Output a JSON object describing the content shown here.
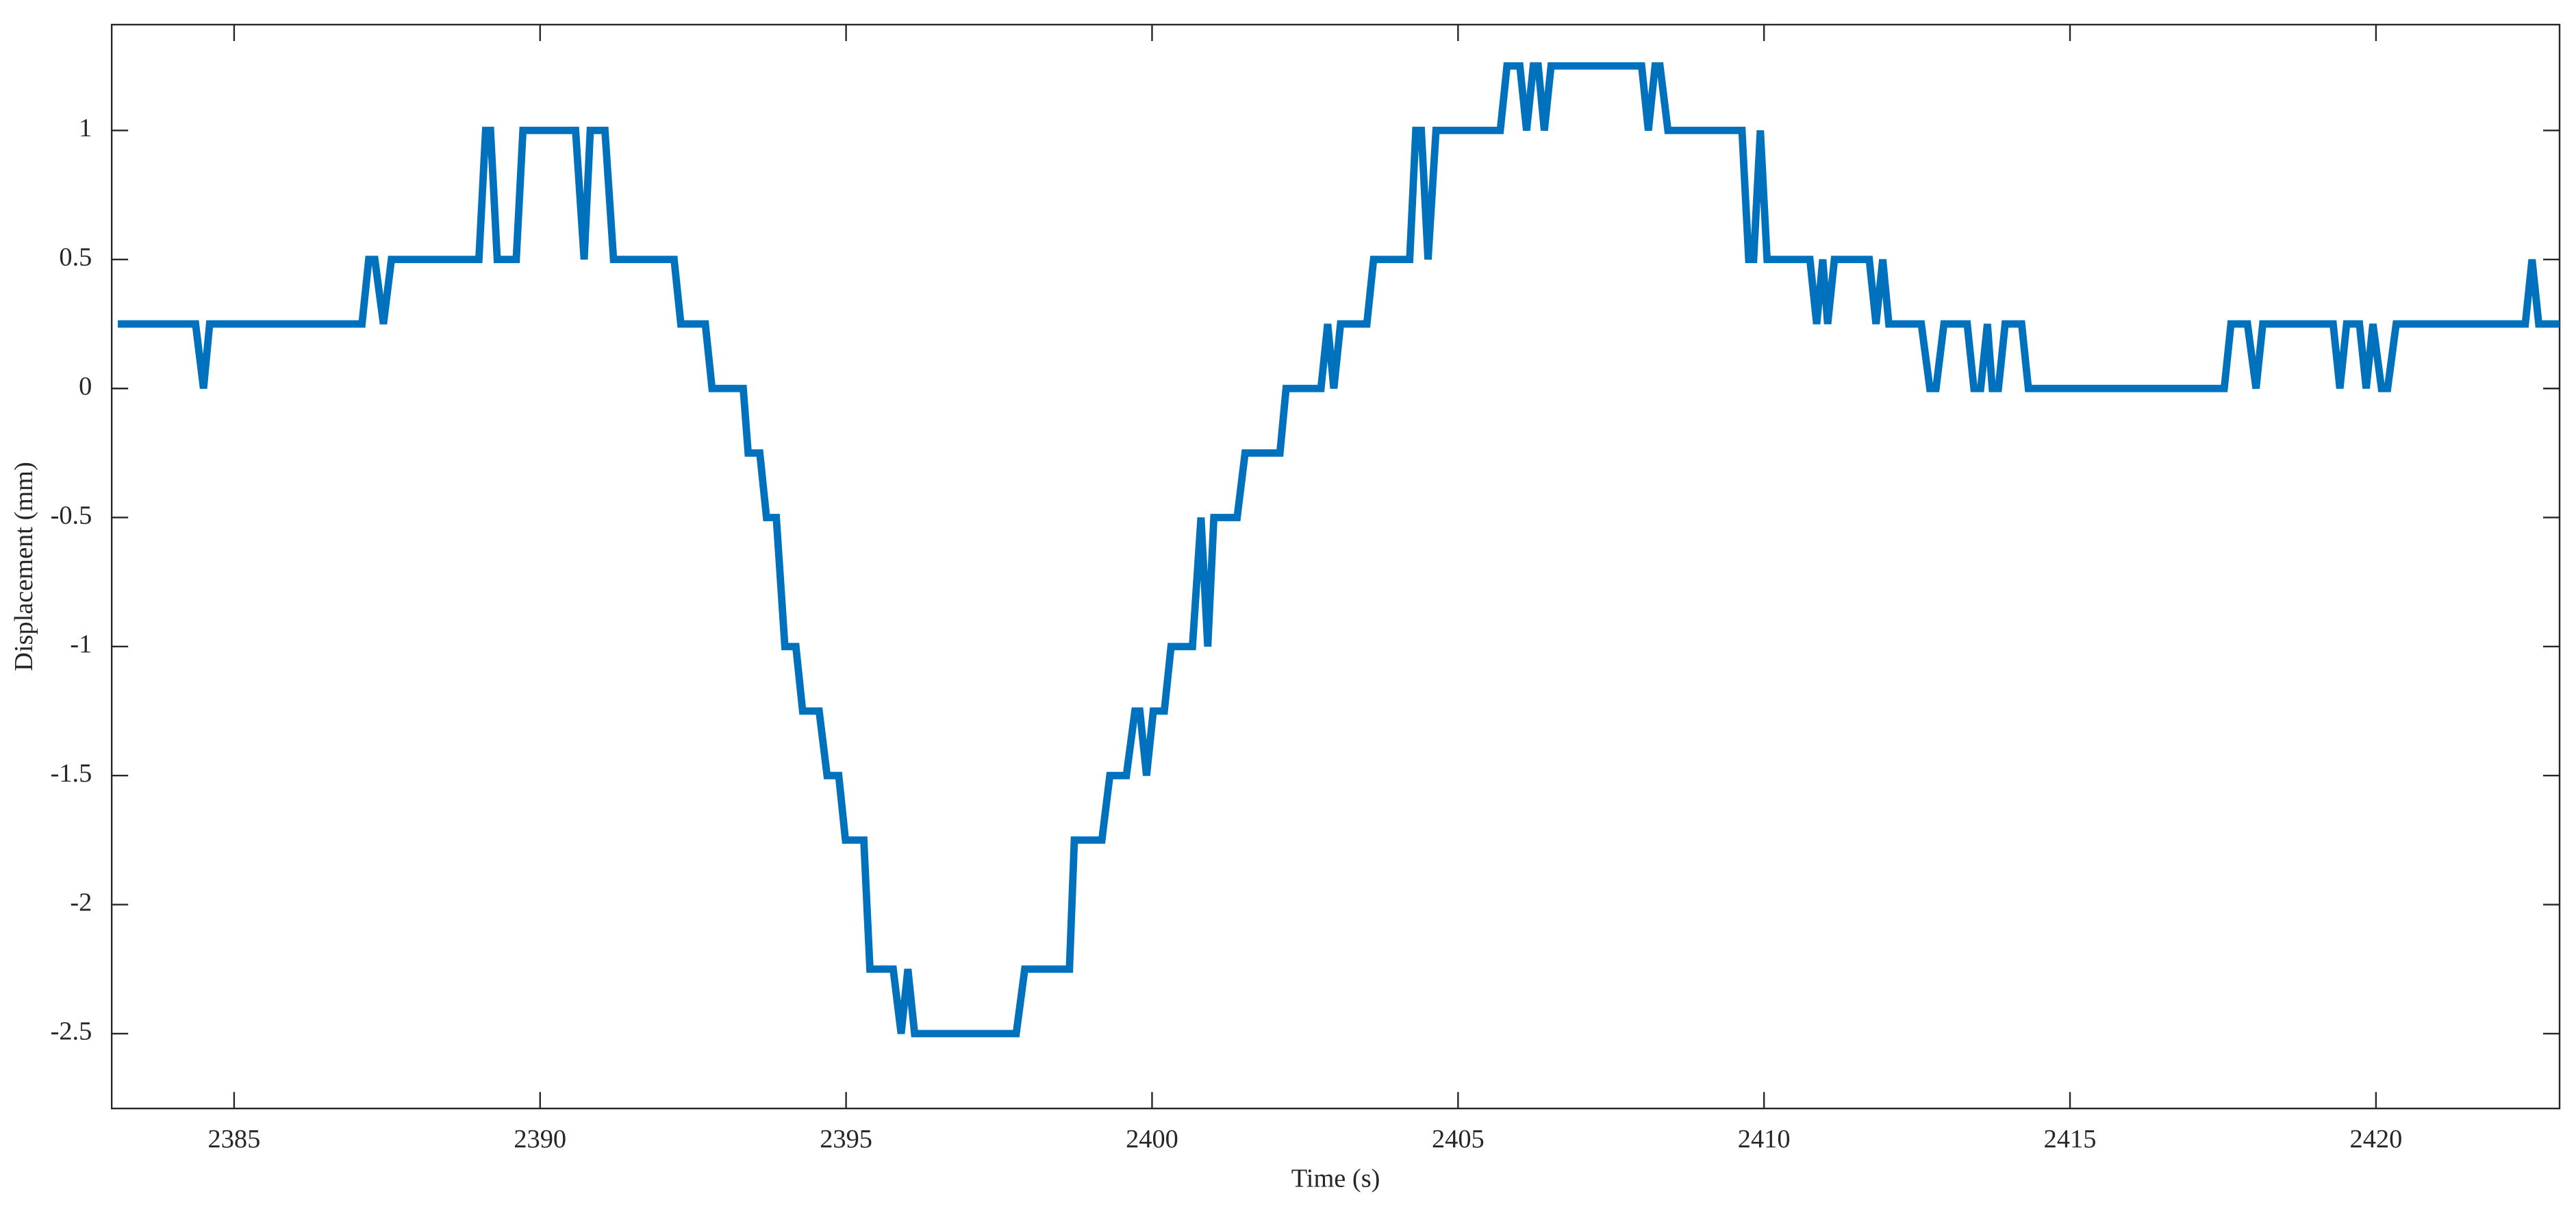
{
  "chart_data": {
    "type": "line",
    "x_label": "Time (s)",
    "y_label": "Displacement (mm)",
    "xlim": [
      2383,
      2423
    ],
    "ylim": [
      -2.79,
      1.41
    ],
    "xticks": [
      2385,
      2390,
      2395,
      2400,
      2405,
      2410,
      2415,
      2420
    ],
    "yticks": [
      -2.5,
      -2,
      -1.5,
      -1,
      -0.5,
      0,
      0.5,
      1
    ],
    "grid": false,
    "series": [
      {
        "name": "Displacement",
        "color": "#0072bd",
        "x": [
          2383.1,
          2384.37,
          2384.5,
          2384.6,
          2387.09,
          2387.2,
          2387.3,
          2387.44,
          2387.57,
          2389.0,
          2389.11,
          2389.19,
          2389.3,
          2389.61,
          2389.72,
          2390.58,
          2390.72,
          2390.82,
          2391.06,
          2391.2,
          2392.19,
          2392.3,
          2392.7,
          2392.81,
          2393.32,
          2393.4,
          2393.59,
          2393.7,
          2393.86,
          2394.0,
          2394.18,
          2394.29,
          2394.56,
          2394.69,
          2394.88,
          2394.99,
          2395.29,
          2395.39,
          2395.77,
          2395.9,
          2396.01,
          2396.12,
          2397.78,
          2397.92,
          2398.65,
          2398.73,
          2399.18,
          2399.31,
          2399.58,
          2399.72,
          2399.8,
          2399.91,
          2400.02,
          2400.2,
          2400.31,
          2400.66,
          2400.8,
          2400.91,
          2401.01,
          2401.39,
          2401.52,
          2402.09,
          2402.19,
          2402.76,
          2402.87,
          2402.97,
          2403.08,
          2403.51,
          2403.62,
          2404.21,
          2404.31,
          2404.4,
          2404.51,
          2404.64,
          2405.69,
          2405.8,
          2406.01,
          2406.12,
          2406.23,
          2406.31,
          2406.41,
          2406.52,
          2408.0,
          2408.11,
          2408.22,
          2408.3,
          2408.43,
          2409.64,
          2409.75,
          2409.83,
          2409.94,
          2410.05,
          2410.75,
          2410.86,
          2410.96,
          2411.04,
          2411.15,
          2411.72,
          2411.83,
          2411.94,
          2412.04,
          2412.57,
          2412.71,
          2412.81,
          2412.94,
          2413.32,
          2413.43,
          2413.54,
          2413.65,
          2413.73,
          2413.83,
          2413.94,
          2414.21,
          2414.32,
          2417.52,
          2417.63,
          2417.9,
          2418.04,
          2418.15,
          2419.3,
          2419.41,
          2419.52,
          2419.73,
          2419.84,
          2419.95,
          2420.09,
          2420.19,
          2420.33,
          2422.44,
          2422.55,
          2422.66,
          2423.0
        ],
        "values": [
          0.25,
          0.25,
          0,
          0.25,
          0.25,
          0.5,
          0.5,
          0.25,
          0.5,
          0.5,
          1,
          1,
          0.5,
          0.5,
          1,
          1,
          0.5,
          1,
          1,
          0.5,
          0.5,
          0.25,
          0.25,
          0,
          0,
          -0.25,
          -0.25,
          -0.5,
          -0.5,
          -1,
          -1,
          -1.25,
          -1.25,
          -1.5,
          -1.5,
          -1.75,
          -1.75,
          -2.25,
          -2.25,
          -2.5,
          -2.25,
          -2.5,
          -2.5,
          -2.25,
          -2.25,
          -1.75,
          -1.75,
          -1.5,
          -1.5,
          -1.25,
          -1.25,
          -1.5,
          -1.25,
          -1.25,
          -1,
          -1,
          -0.5,
          -1,
          -0.5,
          -0.5,
          -0.25,
          -0.25,
          0,
          0,
          0.25,
          0,
          0.25,
          0.25,
          0.5,
          0.5,
          1,
          1,
          0.5,
          1,
          1,
          1.25,
          1.25,
          1,
          1.25,
          1.25,
          1,
          1.25,
          1.25,
          1,
          1.25,
          1.25,
          1,
          1,
          0.5,
          0.5,
          1,
          0.5,
          0.5,
          0.25,
          0.5,
          0.25,
          0.5,
          0.5,
          0.25,
          0.5,
          0.25,
          0.25,
          0,
          0,
          0.25,
          0.25,
          0,
          0,
          0.25,
          0,
          0,
          0.25,
          0.25,
          0,
          0,
          0.25,
          0.25,
          0,
          0.25,
          0.25,
          0,
          0.25,
          0.25,
          0,
          0.25,
          0,
          0,
          0.25,
          0.25,
          0.5,
          0.25,
          0.25
        ]
      }
    ]
  }
}
